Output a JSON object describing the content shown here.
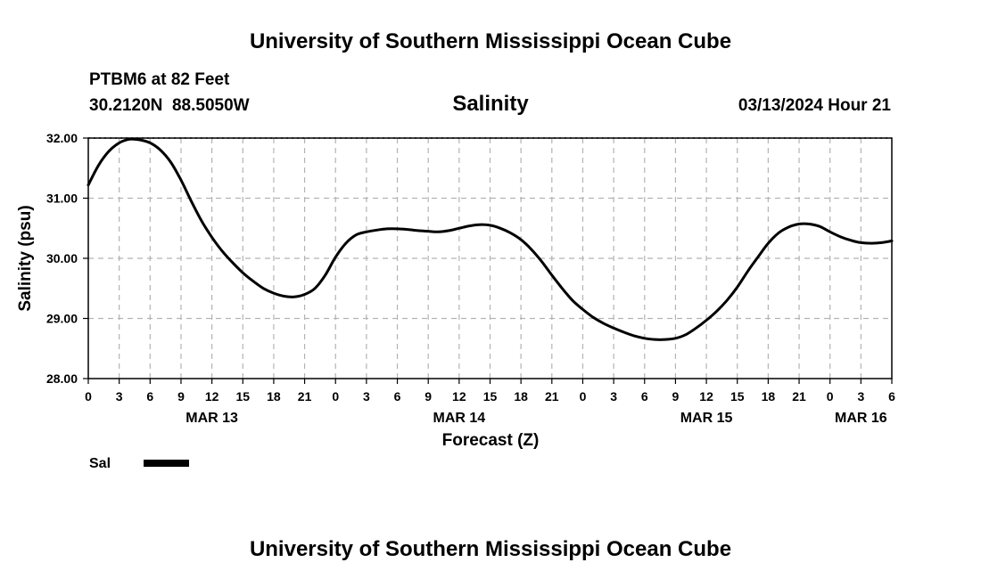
{
  "header": {
    "title": "University of Southern Mississippi Ocean Cube",
    "station": "PTBM6 at 82 Feet",
    "coords": "30.2120N  88.5050W",
    "datetime": "03/13/2024 Hour 21"
  },
  "footer": {
    "title": "University of Southern Mississippi Ocean Cube"
  },
  "chart_data": {
    "type": "line",
    "title": "Salinity",
    "xlabel": "Forecast (Z)",
    "ylabel": "Salinity (psu)",
    "xlim": [
      0,
      78
    ],
    "ylim": [
      28.0,
      32.0
    ],
    "y_ticks": [
      "28.00",
      "29.00",
      "30.00",
      "31.00",
      "32.00"
    ],
    "y_tick_values": [
      28,
      29,
      30,
      31,
      32
    ],
    "x_tick_labels": [
      "0",
      "3",
      "6",
      "9",
      "12",
      "15",
      "18",
      "21",
      "0",
      "3",
      "6",
      "9",
      "12",
      "15",
      "18",
      "21",
      "0",
      "3",
      "6",
      "9",
      "12",
      "15",
      "18",
      "21",
      "0",
      "3",
      "6"
    ],
    "x_tick_hours": [
      0,
      3,
      6,
      9,
      12,
      15,
      18,
      21,
      24,
      27,
      30,
      33,
      36,
      39,
      42,
      45,
      48,
      51,
      54,
      57,
      60,
      63,
      66,
      69,
      72,
      75,
      78
    ],
    "day_labels": [
      {
        "label": "MAR 13",
        "hour": 12
      },
      {
        "label": "MAR 14",
        "hour": 36
      },
      {
        "label": "MAR 15",
        "hour": 60
      },
      {
        "label": "MAR 16",
        "hour": 75
      }
    ],
    "grid": true,
    "legend": [
      {
        "name": "Sal",
        "color": "#000000"
      }
    ],
    "series": [
      {
        "name": "Sal",
        "color": "#000000",
        "x": [
          0,
          1,
          2,
          3,
          4,
          5,
          6,
          7,
          8,
          9,
          10,
          11,
          12,
          13,
          14,
          15,
          16,
          17,
          18,
          19,
          20,
          21,
          22,
          23,
          24,
          25,
          26,
          27,
          28,
          29,
          30,
          31,
          32,
          33,
          34,
          35,
          36,
          37,
          38,
          39,
          40,
          41,
          42,
          43,
          44,
          45,
          46,
          47,
          48,
          49,
          50,
          51,
          52,
          53,
          54,
          55,
          56,
          57,
          58,
          59,
          60,
          61,
          62,
          63,
          64,
          65,
          66,
          67,
          68,
          69,
          70,
          71,
          72,
          73,
          74,
          75,
          76,
          77,
          78
        ],
        "values": [
          31.22,
          31.55,
          31.78,
          31.92,
          31.98,
          31.97,
          31.92,
          31.8,
          31.6,
          31.3,
          30.95,
          30.62,
          30.35,
          30.12,
          29.93,
          29.76,
          29.62,
          29.5,
          29.42,
          29.37,
          29.36,
          29.4,
          29.5,
          29.72,
          30.02,
          30.25,
          30.39,
          30.44,
          30.47,
          30.49,
          30.49,
          30.48,
          30.46,
          30.45,
          30.44,
          30.46,
          30.5,
          30.54,
          30.56,
          30.55,
          30.5,
          30.42,
          30.31,
          30.15,
          29.95,
          29.72,
          29.5,
          29.3,
          29.15,
          29.02,
          28.92,
          28.84,
          28.77,
          28.71,
          28.67,
          28.65,
          28.65,
          28.67,
          28.73,
          28.84,
          28.97,
          29.12,
          29.3,
          29.52,
          29.78,
          30.02,
          30.25,
          30.42,
          30.52,
          30.57,
          30.57,
          30.53,
          30.44,
          30.36,
          30.3,
          30.26,
          30.25,
          30.26,
          30.29
        ]
      }
    ]
  }
}
